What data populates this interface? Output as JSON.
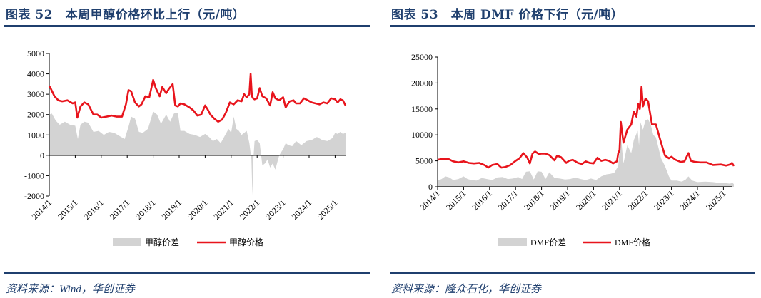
{
  "panels": [
    {
      "title": "图表 52　本周甲醇价格环比上行（元/吨）",
      "source": "资料来源：Wind，华创证券",
      "legend": [
        {
          "label": "甲醇价差",
          "type": "area",
          "color": "#d3d3d3"
        },
        {
          "label": "甲醇价格",
          "type": "line",
          "color": "#e8141c"
        }
      ]
    },
    {
      "title": "图表 53　本周 DMF 价格下行（元/吨）",
      "source": "资料来源：隆众石化，华创证券",
      "legend": [
        {
          "label": "DMF价差",
          "type": "area",
          "color": "#d3d3d3"
        },
        {
          "label": "DMF价格",
          "type": "line",
          "color": "#e8141c"
        }
      ]
    }
  ],
  "colors": {
    "title": "#1f3f6e",
    "line": "#e8141c",
    "area": "#d3d3d3",
    "axis": "#000000"
  },
  "chart_data": [
    {
      "type": "line",
      "title": "本周甲醇价格环比上行（元/吨）",
      "xlabel": "",
      "ylabel": "元/吨",
      "ylim": [
        -2000,
        5000
      ],
      "yticks": [
        5000,
        4000,
        3000,
        2000,
        1000,
        0,
        -1000,
        -2000
      ],
      "xticks": [
        "2014/1",
        "2015/1",
        "2016/1",
        "2017/1",
        "2018/1",
        "2019/1",
        "2020/1",
        "2021/1",
        "2022/1",
        "2023/1",
        "2024/1",
        "2025/1"
      ],
      "xrange": [
        2014.0,
        2025.4
      ],
      "grid": false,
      "legend_position": "bottom",
      "series": [
        {
          "name": "甲醇价差",
          "kind": "area",
          "x": [
            2014.0,
            2014.1,
            2014.25,
            2014.4,
            2014.6,
            2014.8,
            2015.0,
            2015.1,
            2015.2,
            2015.35,
            2015.5,
            2015.7,
            2015.9,
            2016.1,
            2016.3,
            2016.5,
            2016.7,
            2016.9,
            2017.05,
            2017.15,
            2017.3,
            2017.45,
            2017.6,
            2017.8,
            2018.0,
            2018.15,
            2018.3,
            2018.5,
            2018.65,
            2018.8,
            2018.95,
            2019.05,
            2019.2,
            2019.4,
            2019.6,
            2019.8,
            2020.0,
            2020.15,
            2020.3,
            2020.45,
            2020.6,
            2020.75,
            2020.9,
            2021.0,
            2021.1,
            2021.2,
            2021.3,
            2021.4,
            2021.5,
            2021.6,
            2021.7,
            2021.78,
            2021.82,
            2021.86,
            2021.9,
            2022.0,
            2022.1,
            2022.2,
            2022.3,
            2022.4,
            2022.5,
            2022.6,
            2022.7,
            2022.85,
            2023.0,
            2023.1,
            2023.2,
            2023.35,
            2023.5,
            2023.7,
            2023.9,
            2024.1,
            2024.3,
            2024.5,
            2024.7,
            2024.9,
            2025.0,
            2025.1,
            2025.2,
            2025.3,
            2025.4
          ],
          "values": [
            2000,
            2050,
            1700,
            1500,
            1650,
            1500,
            1450,
            800,
            1500,
            1650,
            1600,
            1150,
            1200,
            1000,
            1150,
            1100,
            950,
            800,
            1400,
            1900,
            1800,
            1150,
            1100,
            1300,
            2150,
            2000,
            1550,
            2000,
            1650,
            2050,
            2100,
            1200,
            1200,
            1050,
            1000,
            900,
            1050,
            900,
            700,
            800,
            600,
            950,
            1300,
            1100,
            1900,
            1300,
            1200,
            1000,
            1100,
            1200,
            600,
            -200,
            -1950,
            -100,
            700,
            750,
            600,
            -500,
            -400,
            -200,
            -600,
            -400,
            -700,
            0,
            300,
            600,
            500,
            450,
            700,
            500,
            700,
            750,
            900,
            750,
            700,
            850,
            1100,
            1050,
            1150,
            1050,
            1100
          ]
        },
        {
          "name": "甲醇价格",
          "kind": "line",
          "x": [
            2014.0,
            2014.05,
            2014.2,
            2014.35,
            2014.5,
            2014.7,
            2014.9,
            2015.0,
            2015.08,
            2015.2,
            2015.35,
            2015.5,
            2015.7,
            2015.85,
            2016.0,
            2016.2,
            2016.4,
            2016.6,
            2016.8,
            2016.95,
            2017.05,
            2017.15,
            2017.3,
            2017.45,
            2017.55,
            2017.7,
            2017.85,
            2018.0,
            2018.1,
            2018.25,
            2018.35,
            2018.5,
            2018.6,
            2018.75,
            2018.85,
            2018.95,
            2019.05,
            2019.2,
            2019.4,
            2019.55,
            2019.7,
            2019.85,
            2020.0,
            2020.1,
            2020.2,
            2020.35,
            2020.5,
            2020.65,
            2020.8,
            2020.95,
            2021.1,
            2021.25,
            2021.4,
            2021.5,
            2021.6,
            2021.7,
            2021.75,
            2021.8,
            2021.85,
            2021.9,
            2022.0,
            2022.1,
            2022.2,
            2022.35,
            2022.5,
            2022.6,
            2022.7,
            2022.85,
            2023.0,
            2023.1,
            2023.25,
            2023.4,
            2023.5,
            2023.65,
            2023.8,
            2023.95,
            2024.1,
            2024.25,
            2024.4,
            2024.55,
            2024.7,
            2024.85,
            2025.0,
            2025.1,
            2025.2,
            2025.3,
            2025.4
          ],
          "values": [
            3400,
            3300,
            2900,
            2700,
            2650,
            2700,
            2550,
            2600,
            1850,
            2400,
            2600,
            2500,
            2000,
            2000,
            1850,
            1900,
            1950,
            1900,
            1900,
            2500,
            3200,
            3150,
            2600,
            2400,
            2500,
            2900,
            2850,
            3700,
            3300,
            2900,
            3350,
            3050,
            3250,
            3500,
            2450,
            2400,
            2550,
            2500,
            2350,
            2200,
            1950,
            2000,
            2450,
            2250,
            2000,
            1800,
            1650,
            1750,
            2100,
            2600,
            2500,
            2700,
            2650,
            3000,
            2850,
            3000,
            4000,
            2900,
            2800,
            2750,
            2800,
            3300,
            2900,
            2800,
            2450,
            3100,
            2800,
            2700,
            2850,
            2350,
            2650,
            2700,
            2550,
            2550,
            2800,
            2700,
            2600,
            2550,
            2500,
            2600,
            2550,
            2800,
            2750,
            2600,
            2750,
            2700,
            2450
          ]
        }
      ]
    },
    {
      "type": "line",
      "title": "本周 DMF 价格下行（元/吨）",
      "xlabel": "",
      "ylabel": "元/吨",
      "ylim": [
        0,
        25000
      ],
      "yticks": [
        25000,
        20000,
        15000,
        10000,
        5000,
        0
      ],
      "xticks": [
        "2014/1",
        "2015/1",
        "2016/1",
        "2017/1",
        "2018/1",
        "2019/1",
        "2020/1",
        "2021/1",
        "2022/1",
        "2023/1",
        "2024/1",
        "2025/1"
      ],
      "xrange": [
        2014.0,
        2025.4
      ],
      "grid": false,
      "legend_position": "bottom",
      "series": [
        {
          "name": "DMF价差",
          "kind": "area",
          "x": [
            2014.0,
            2014.15,
            2014.3,
            2014.45,
            2014.6,
            2014.8,
            2015.0,
            2015.15,
            2015.3,
            2015.5,
            2015.7,
            2015.9,
            2016.1,
            2016.3,
            2016.5,
            2016.7,
            2016.9,
            2017.1,
            2017.25,
            2017.4,
            2017.55,
            2017.7,
            2017.85,
            2018.0,
            2018.15,
            2018.3,
            2018.5,
            2018.7,
            2018.9,
            2019.1,
            2019.3,
            2019.5,
            2019.7,
            2019.9,
            2020.1,
            2020.3,
            2020.5,
            2020.65,
            2020.8,
            2020.95,
            2021.0,
            2021.05,
            2021.15,
            2021.3,
            2021.45,
            2021.55,
            2021.7,
            2021.75,
            2021.8,
            2021.9,
            2022.0,
            2022.1,
            2022.2,
            2022.3,
            2022.4,
            2022.5,
            2022.6,
            2022.75,
            2022.9,
            2023.0,
            2023.2,
            2023.4,
            2023.55,
            2023.65,
            2023.8,
            2024.0,
            2024.3,
            2024.6,
            2024.9,
            2025.1,
            2025.25,
            2025.35,
            2025.4
          ],
          "values": [
            1200,
            1500,
            2000,
            1800,
            1300,
            1500,
            2000,
            1500,
            1300,
            1200,
            1700,
            1500,
            1300,
            1800,
            1900,
            1500,
            1600,
            1900,
            1500,
            2900,
            3000,
            1400,
            3000,
            2900,
            1500,
            2800,
            1700,
            1600,
            1400,
            1500,
            1800,
            1500,
            1300,
            1600,
            1300,
            2000,
            2400,
            2500,
            2700,
            4000,
            7000,
            10000,
            4500,
            8000,
            6500,
            9000,
            10800,
            8000,
            12500,
            11000,
            12800,
            13000,
            12000,
            10000,
            9500,
            7500,
            5500,
            4000,
            2000,
            1200,
            1200,
            1000,
            1400,
            2000,
            1200,
            900,
            1000,
            900,
            700,
            700,
            600,
            800,
            500
          ]
        },
        {
          "name": "DMF价格",
          "kind": "line",
          "x": [
            2014.0,
            2014.2,
            2014.4,
            2014.6,
            2014.8,
            2015.0,
            2015.2,
            2015.4,
            2015.6,
            2015.8,
            2015.95,
            2016.1,
            2016.3,
            2016.45,
            2016.6,
            2016.8,
            2017.0,
            2017.15,
            2017.3,
            2017.45,
            2017.55,
            2017.65,
            2017.75,
            2017.9,
            2018.0,
            2018.15,
            2018.3,
            2018.5,
            2018.6,
            2018.75,
            2018.95,
            2019.05,
            2019.2,
            2019.4,
            2019.55,
            2019.7,
            2019.85,
            2020.0,
            2020.15,
            2020.3,
            2020.45,
            2020.6,
            2020.75,
            2020.85,
            2020.9,
            2020.95,
            2021.0,
            2021.05,
            2021.15,
            2021.3,
            2021.45,
            2021.55,
            2021.65,
            2021.72,
            2021.78,
            2021.85,
            2021.9,
            2022.0,
            2022.1,
            2022.25,
            2022.4,
            2022.6,
            2022.75,
            2022.9,
            2023.0,
            2023.15,
            2023.35,
            2023.5,
            2023.65,
            2023.75,
            2023.9,
            2024.1,
            2024.35,
            2024.6,
            2024.9,
            2025.1,
            2025.25,
            2025.33,
            2025.4
          ],
          "values": [
            5200,
            5400,
            5400,
            4900,
            4700,
            4900,
            4600,
            4500,
            4600,
            4200,
            3700,
            4200,
            4400,
            3700,
            3800,
            4200,
            5000,
            5500,
            6500,
            5600,
            4500,
            6400,
            6800,
            6300,
            6400,
            6400,
            6100,
            5100,
            6000,
            5700,
            4600,
            5000,
            5200,
            4600,
            4400,
            4900,
            4600,
            4500,
            5600,
            5000,
            5200,
            5000,
            4500,
            4800,
            4900,
            6500,
            7000,
            12500,
            8500,
            11000,
            12000,
            14500,
            13500,
            16000,
            15000,
            19300,
            15500,
            17000,
            16500,
            12000,
            12000,
            8500,
            6000,
            5500,
            5800,
            5200,
            4800,
            4900,
            6500,
            5000,
            4800,
            4700,
            4700,
            4200,
            4300,
            4100,
            4300,
            4600,
            4000
          ]
        }
      ]
    }
  ]
}
